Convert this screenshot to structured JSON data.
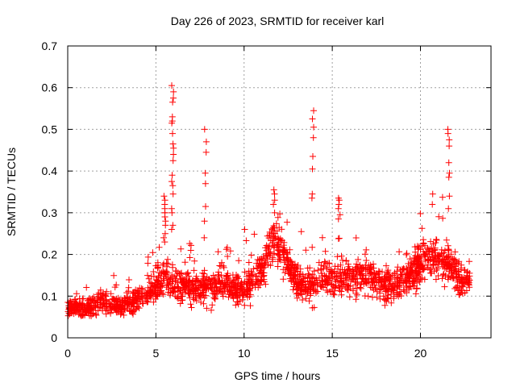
{
  "chart_data": {
    "type": "scatter",
    "title": "Day 226 of 2023, SRMTID for receiver karl",
    "xlabel": "GPS time / hours",
    "ylabel": "SRMTID / TECUs",
    "xlim": [
      0,
      24
    ],
    "ylim": [
      0,
      0.7
    ],
    "xticks": [
      0,
      5,
      10,
      15,
      20
    ],
    "xtick_labels": [
      "0",
      "5",
      "10",
      "15",
      "20"
    ],
    "yticks": [
      0,
      0.1,
      0.2,
      0.3,
      0.4,
      0.5,
      0.6,
      0.7
    ],
    "ytick_labels": [
      "0",
      "0.1",
      "0.2",
      "0.3",
      "0.4",
      "0.5",
      "0.6",
      "0.7"
    ],
    "grid": true,
    "legend": "none",
    "marker": "+",
    "marker_color": "#ff0000",
    "series": [
      {
        "name": "SRMTID",
        "description": "Dense scatter of roughly 2000 points from 0 to ~22.8 h; baseline ~0.05-0.12 TECU before 5 h, rising to ~0.1-0.25 TECU afterwards",
        "baseline": {
          "x": [
            0,
            1,
            2,
            3,
            4,
            4.8,
            5.5,
            6.5,
            8,
            9,
            10,
            11,
            11.8,
            12.5,
            13.5,
            14.5,
            15.5,
            16.5,
            17.5,
            18.5,
            19.5,
            20.3,
            21,
            21.7,
            22.3,
            22.8
          ],
          "center": [
            0.075,
            0.07,
            0.085,
            0.075,
            0.095,
            0.12,
            0.15,
            0.12,
            0.12,
            0.13,
            0.11,
            0.16,
            0.24,
            0.17,
            0.12,
            0.15,
            0.14,
            0.15,
            0.14,
            0.12,
            0.15,
            0.2,
            0.19,
            0.18,
            0.13,
            0.14
          ],
          "spread": [
            0.025,
            0.025,
            0.03,
            0.03,
            0.035,
            0.04,
            0.05,
            0.045,
            0.045,
            0.045,
            0.045,
            0.05,
            0.06,
            0.05,
            0.045,
            0.05,
            0.05,
            0.05,
            0.05,
            0.045,
            0.05,
            0.06,
            0.06,
            0.055,
            0.045,
            0.04
          ]
        },
        "spikes": [
          {
            "x": 5.5,
            "y": [
              0.34,
              0.33,
              0.32,
              0.31,
              0.3,
              0.3,
              0.29,
              0.28,
              0.27,
              0.25,
              0.24,
              0.23
            ]
          },
          {
            "x": 5.95,
            "y": [
              0.605,
              0.59,
              0.575,
              0.565,
              0.53,
              0.52,
              0.515,
              0.49,
              0.465,
              0.455,
              0.44,
              0.425,
              0.39,
              0.375,
              0.365,
              0.345,
              0.31,
              0.3,
              0.27,
              0.26
            ]
          },
          {
            "x": 7.8,
            "y": [
              0.5,
              0.47,
              0.445,
              0.395,
              0.37,
              0.315,
              0.28,
              0.24
            ]
          },
          {
            "x": 13.9,
            "y": [
              0.545,
              0.525,
              0.505,
              0.48,
              0.435,
              0.405,
              0.345,
              0.335
            ]
          },
          {
            "x": 15.4,
            "y": [
              0.335,
              0.33,
              0.32,
              0.31,
              0.295,
              0.285
            ]
          },
          {
            "x": 21.6,
            "y": [
              0.5,
              0.49,
              0.475,
              0.46,
              0.42,
              0.395,
              0.385,
              0.34,
              0.31
            ]
          },
          {
            "x": 11.7,
            "y": [
              0.355,
              0.345,
              0.33,
              0.32,
              0.3
            ]
          },
          {
            "x": 10.0,
            "y": [
              0.26
            ]
          },
          {
            "x": 20.7,
            "y": [
              0.345,
              0.32
            ]
          }
        ],
        "point_count_estimate": 2000
      }
    ]
  }
}
